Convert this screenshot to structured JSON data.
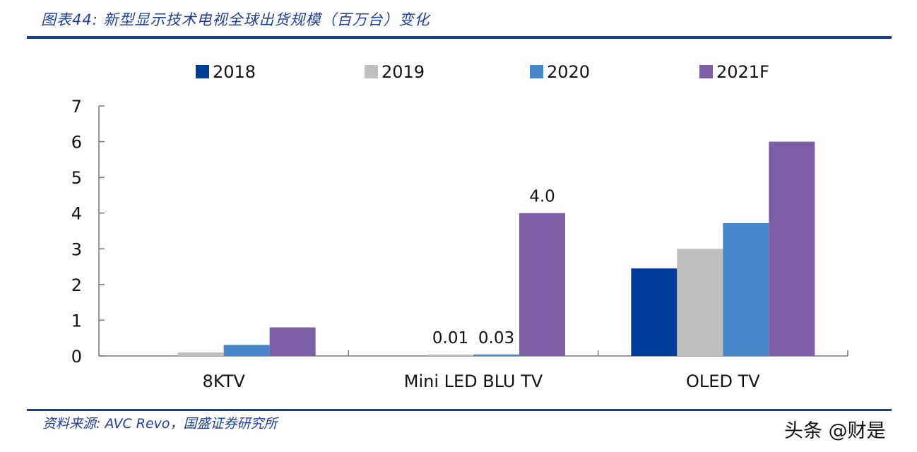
{
  "title": "图表44: 新型显示技术电视全球出货规模（百万台）变化",
  "source": "资料来源: AVC Revo，国盛证券研究所",
  "watermark": "头条 @财是",
  "chart_data": {
    "type": "bar",
    "title": "",
    "xlabel": "",
    "ylabel": "",
    "ylim": [
      0,
      7
    ],
    "yticks": [
      0,
      1,
      2,
      3,
      4,
      5,
      6,
      7
    ],
    "grid": false,
    "legend_position": "top",
    "categories": [
      "8KTV",
      "Mini LED BLU TV",
      "OLED TV"
    ],
    "series": [
      {
        "name": "2018",
        "color": "#003e9a",
        "values": [
          0,
          0,
          2.45
        ]
      },
      {
        "name": "2019",
        "color": "#bfbfbf",
        "values": [
          0.1,
          0.01,
          3.0
        ]
      },
      {
        "name": "2020",
        "color": "#4a86cc",
        "values": [
          0.31,
          0.03,
          3.72
        ]
      },
      {
        "name": "2021F",
        "color": "#7d5fa5",
        "values": [
          0.8,
          4.0,
          6.0
        ]
      }
    ],
    "data_labels": [
      {
        "category": "Mini LED BLU TV",
        "series": "2019",
        "text": "0.01"
      },
      {
        "category": "Mini LED BLU TV",
        "series": "2020",
        "text": "0.03"
      },
      {
        "category": "Mini LED BLU TV",
        "series": "2021F",
        "text": "4.0"
      }
    ]
  }
}
